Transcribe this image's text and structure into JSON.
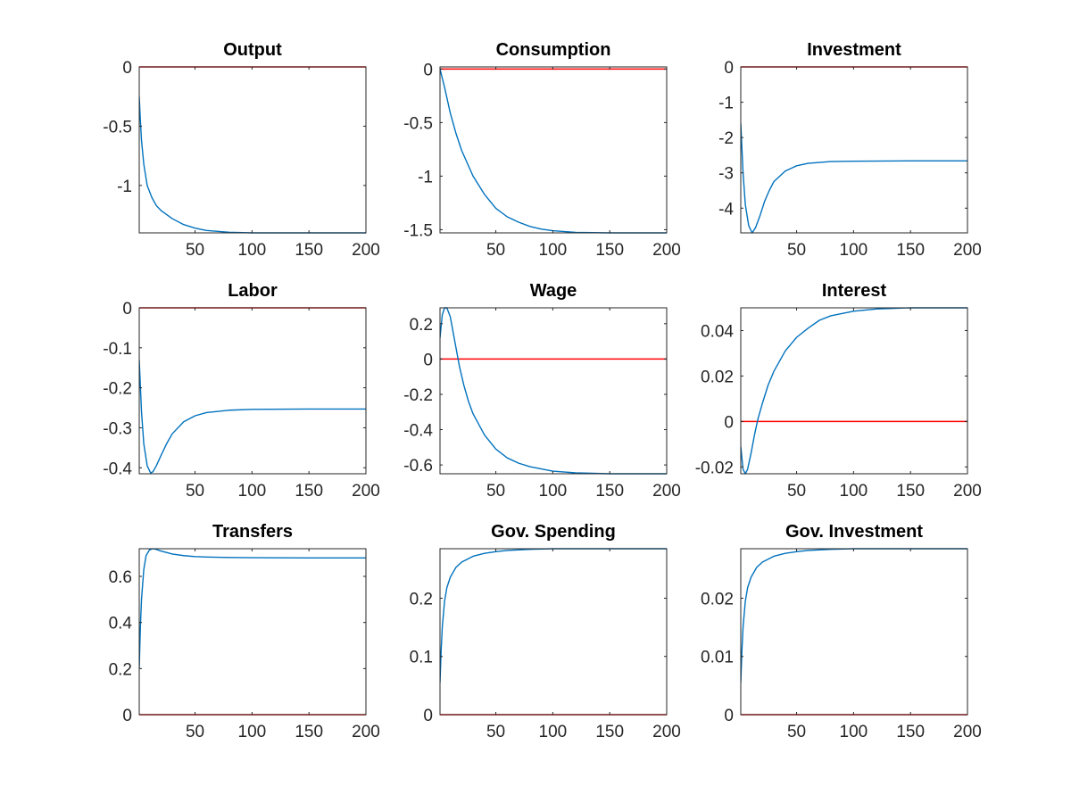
{
  "colors": {
    "response": "#0072BD",
    "baseline": "#FF0000",
    "axis": "#262626"
  },
  "chart_data": [
    {
      "type": "line",
      "title": "Output",
      "xlim": [
        1,
        200
      ],
      "ylim": [
        -1.4,
        0
      ],
      "xticks": [
        50,
        100,
        150,
        200
      ],
      "xtick_labels": [
        "50",
        "100",
        "150",
        "200"
      ],
      "yticks": [
        0,
        -0.5,
        -1
      ],
      "ytick_labels": [
        "0",
        "-0.5",
        "-1"
      ],
      "baseline": 0,
      "series": [
        {
          "x": [
            1,
            2,
            3,
            5,
            8,
            12,
            16,
            20,
            30,
            40,
            50,
            60,
            80,
            100,
            150,
            200
          ],
          "y": [
            -0.25,
            -0.45,
            -0.62,
            -0.82,
            -1.0,
            -1.1,
            -1.17,
            -1.21,
            -1.28,
            -1.33,
            -1.36,
            -1.38,
            -1.395,
            -1.4,
            -1.4,
            -1.4
          ]
        }
      ]
    },
    {
      "type": "line",
      "title": "Consumption",
      "xlim": [
        1,
        200
      ],
      "ylim": [
        -1.53,
        0.02
      ],
      "xticks": [
        50,
        100,
        150,
        200
      ],
      "xtick_labels": [
        "50",
        "100",
        "150",
        "200"
      ],
      "yticks": [
        0,
        -0.5,
        -1,
        -1.5
      ],
      "ytick_labels": [
        "0",
        "-0.5",
        "-1",
        "-1.5"
      ],
      "baseline": 0,
      "series": [
        {
          "x": [
            1,
            5,
            10,
            15,
            20,
            30,
            40,
            50,
            60,
            70,
            80,
            90,
            100,
            120,
            150,
            200
          ],
          "y": [
            0,
            -0.17,
            -0.41,
            -0.6,
            -0.76,
            -1.0,
            -1.17,
            -1.3,
            -1.38,
            -1.43,
            -1.47,
            -1.495,
            -1.51,
            -1.525,
            -1.53,
            -1.53
          ]
        }
      ]
    },
    {
      "type": "line",
      "title": "Investment",
      "xlim": [
        1,
        200
      ],
      "ylim": [
        -4.7,
        0
      ],
      "xticks": [
        50,
        100,
        150,
        200
      ],
      "xtick_labels": [
        "50",
        "100",
        "150",
        "200"
      ],
      "yticks": [
        0,
        -1,
        -2,
        -3,
        -4
      ],
      "ytick_labels": [
        "0",
        "-1",
        "-2",
        "-3",
        "-4"
      ],
      "baseline": 0,
      "series": [
        {
          "x": [
            1,
            3,
            5,
            8,
            11,
            14,
            18,
            22,
            26,
            30,
            40,
            50,
            60,
            80,
            100,
            150,
            200
          ],
          "y": [
            -1.6,
            -3.0,
            -3.9,
            -4.5,
            -4.7,
            -4.55,
            -4.2,
            -3.8,
            -3.5,
            -3.25,
            -2.95,
            -2.8,
            -2.73,
            -2.68,
            -2.67,
            -2.66,
            -2.66
          ]
        }
      ]
    },
    {
      "type": "line",
      "title": "Labor",
      "xlim": [
        1,
        200
      ],
      "ylim": [
        -0.415,
        0
      ],
      "xticks": [
        50,
        100,
        150,
        200
      ],
      "xtick_labels": [
        "50",
        "100",
        "150",
        "200"
      ],
      "yticks": [
        0,
        -0.1,
        -0.2,
        -0.3,
        -0.4
      ],
      "ytick_labels": [
        "0",
        "-0.1",
        "-0.2",
        "-0.3",
        "-0.4"
      ],
      "baseline": 0,
      "series": [
        {
          "x": [
            1,
            3,
            5,
            8,
            11,
            13,
            16,
            20,
            25,
            30,
            40,
            50,
            60,
            80,
            100,
            150,
            200
          ],
          "y": [
            -0.13,
            -0.26,
            -0.34,
            -0.395,
            -0.413,
            -0.41,
            -0.395,
            -0.37,
            -0.34,
            -0.315,
            -0.285,
            -0.27,
            -0.262,
            -0.256,
            -0.254,
            -0.253,
            -0.253
          ]
        }
      ]
    },
    {
      "type": "line",
      "title": "Wage",
      "xlim": [
        1,
        200
      ],
      "ylim": [
        -0.65,
        0.29
      ],
      "xticks": [
        50,
        100,
        150,
        200
      ],
      "xtick_labels": [
        "50",
        "100",
        "150",
        "200"
      ],
      "yticks": [
        0.2,
        0,
        -0.2,
        -0.4,
        -0.6
      ],
      "ytick_labels": [
        "0.2",
        "0",
        "-0.2",
        "-0.4",
        "-0.6"
      ],
      "baseline": 0,
      "series": [
        {
          "x": [
            1,
            3,
            5,
            7,
            10,
            14,
            18,
            22,
            26,
            30,
            40,
            50,
            60,
            70,
            80,
            100,
            120,
            150,
            200
          ],
          "y": [
            0.12,
            0.25,
            0.29,
            0.29,
            0.24,
            0.1,
            -0.04,
            -0.15,
            -0.24,
            -0.31,
            -0.43,
            -0.51,
            -0.56,
            -0.59,
            -0.61,
            -0.635,
            -0.645,
            -0.65,
            -0.65
          ]
        }
      ]
    },
    {
      "type": "line",
      "title": "Interest",
      "xlim": [
        1,
        200
      ],
      "ylim": [
        -0.023,
        0.05
      ],
      "xticks": [
        50,
        100,
        150,
        200
      ],
      "xtick_labels": [
        "50",
        "100",
        "150",
        "200"
      ],
      "yticks": [
        0.04,
        0.02,
        0,
        -0.02
      ],
      "ytick_labels": [
        "0.04",
        "0.02",
        "0",
        "-0.02"
      ],
      "baseline": 0,
      "series": [
        {
          "x": [
            1,
            3,
            5,
            7,
            10,
            13,
            16,
            20,
            25,
            30,
            40,
            50,
            60,
            70,
            80,
            100,
            120,
            150,
            200
          ],
          "y": [
            -0.011,
            -0.021,
            -0.023,
            -0.021,
            -0.014,
            -0.006,
            0.001,
            0.008,
            0.016,
            0.022,
            0.031,
            0.037,
            0.041,
            0.0445,
            0.0465,
            0.0485,
            0.0495,
            0.05,
            0.05
          ]
        }
      ]
    },
    {
      "type": "line",
      "title": "Transfers",
      "xlim": [
        1,
        200
      ],
      "ylim": [
        0,
        0.72
      ],
      "xticks": [
        50,
        100,
        150,
        200
      ],
      "xtick_labels": [
        "50",
        "100",
        "150",
        "200"
      ],
      "yticks": [
        0,
        0.2,
        0.4,
        0.6
      ],
      "ytick_labels": [
        "0",
        "0.2",
        "0.4",
        "0.6"
      ],
      "baseline": 0,
      "series": [
        {
          "x": [
            1,
            2,
            3,
            5,
            7,
            10,
            13,
            16,
            20,
            30,
            40,
            50,
            60,
            80,
            100,
            150,
            200
          ],
          "y": [
            0.2,
            0.38,
            0.5,
            0.63,
            0.69,
            0.715,
            0.72,
            0.717,
            0.71,
            0.697,
            0.69,
            0.686,
            0.684,
            0.682,
            0.681,
            0.68,
            0.68
          ]
        }
      ]
    },
    {
      "type": "line",
      "title": "Gov. Spending",
      "xlim": [
        1,
        200
      ],
      "ylim": [
        0,
        0.285
      ],
      "xticks": [
        50,
        100,
        150,
        200
      ],
      "xtick_labels": [
        "50",
        "100",
        "150",
        "200"
      ],
      "yticks": [
        0,
        0.1,
        0.2
      ],
      "ytick_labels": [
        "0",
        "0.1",
        "0.2"
      ],
      "baseline": 0,
      "series": [
        {
          "x": [
            1,
            2,
            3,
            5,
            7,
            10,
            15,
            20,
            30,
            40,
            50,
            60,
            80,
            100,
            150,
            200
          ],
          "y": [
            0.055,
            0.11,
            0.15,
            0.195,
            0.218,
            0.236,
            0.253,
            0.262,
            0.272,
            0.277,
            0.28,
            0.282,
            0.284,
            0.285,
            0.285,
            0.285
          ]
        }
      ]
    },
    {
      "type": "line",
      "title": "Gov. Investment",
      "xlim": [
        1,
        200
      ],
      "ylim": [
        0,
        0.0285
      ],
      "xticks": [
        50,
        100,
        150,
        200
      ],
      "xtick_labels": [
        "50",
        "100",
        "150",
        "200"
      ],
      "yticks": [
        0,
        0.01,
        0.02
      ],
      "ytick_labels": [
        "0",
        "0.01",
        "0.02"
      ],
      "baseline": 0,
      "series": [
        {
          "x": [
            1,
            2,
            3,
            5,
            7,
            10,
            15,
            20,
            30,
            40,
            50,
            60,
            80,
            100,
            150,
            200
          ],
          "y": [
            0.0055,
            0.011,
            0.015,
            0.0195,
            0.0218,
            0.0236,
            0.0253,
            0.0262,
            0.0272,
            0.0277,
            0.028,
            0.0282,
            0.0284,
            0.0285,
            0.0285,
            0.0285
          ]
        }
      ]
    }
  ]
}
